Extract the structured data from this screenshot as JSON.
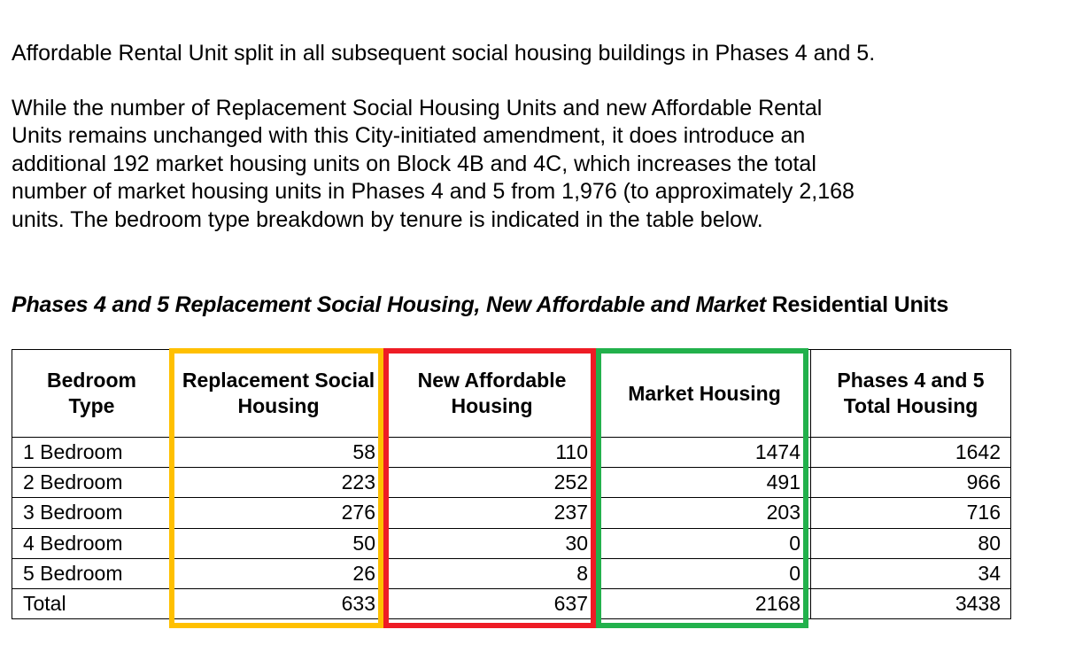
{
  "paragraph1": "Affordable Rental Unit split in all subsequent social housing buildings in Phases 4 and 5.",
  "paragraph2_lines": [
    "While the number of Replacement Social Housing Units and new Affordable Rental",
    "Units remains unchanged with this City-initiated amendment, it does introduce an",
    "additional 192 market housing units on Block 4B and 4C, which increases the total",
    "number of market housing units in Phases 4 and 5 from 1,976 (to approximately 2,168",
    "units. The bedroom type breakdown by tenure is indicated in the table below."
  ],
  "caption": {
    "main": "Phases 4 and 5 Replacement Social Housing, New Affordable and Market ",
    "tail": "Residential Units"
  },
  "table": {
    "headers": [
      "Bedroom Type",
      "Replacement Social Housing",
      "New Affordable Housing",
      "Market Housing",
      "Phases 4 and 5 Total Housing"
    ],
    "rows": [
      [
        "1 Bedroom",
        "58",
        "110",
        "1474",
        "1642"
      ],
      [
        "2 Bedroom",
        "223",
        "252",
        "491",
        "966"
      ],
      [
        "3 Bedroom",
        "276",
        "237",
        "203",
        "716"
      ],
      [
        "4 Bedroom",
        "50",
        "30",
        "0",
        "80"
      ],
      [
        "5 Bedroom",
        "26",
        "8",
        "0",
        "34"
      ],
      [
        "Total",
        "633",
        "637",
        "2168",
        "3438"
      ]
    ]
  },
  "highlight_colors": {
    "replacement_social_housing": "#FFC000",
    "new_affordable_housing": "#EE1C25",
    "market_housing": "#22B14C"
  }
}
